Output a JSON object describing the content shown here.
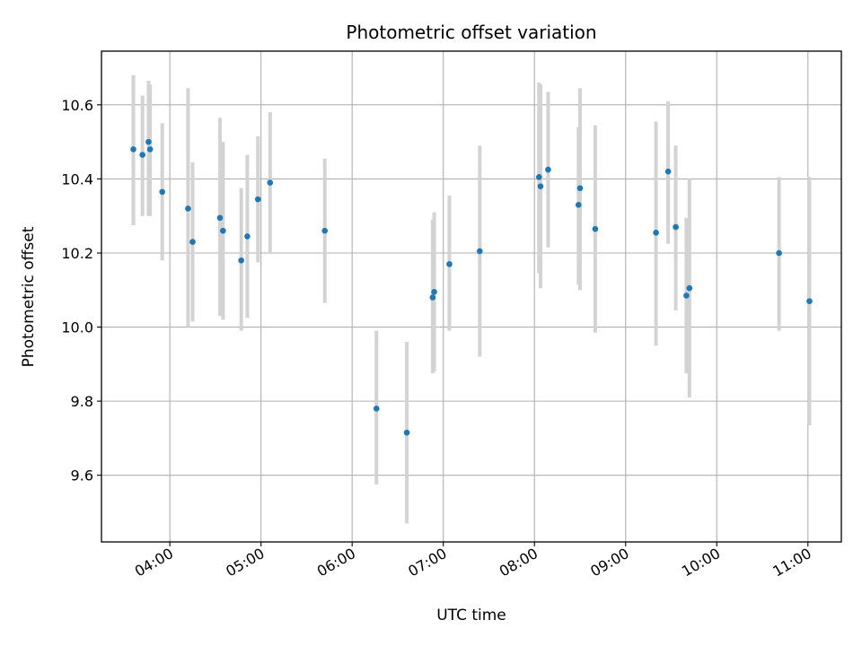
{
  "chart_data": {
    "type": "scatter",
    "title": "Photometric offset variation",
    "xlabel": "UTC time",
    "ylabel": "Photometric offset",
    "xlim": [
      "03:15",
      "11:22"
    ],
    "ylim": [
      9.42,
      10.745
    ],
    "grid": true,
    "x_ticks": [
      "04:00",
      "05:00",
      "06:00",
      "07:00",
      "08:00",
      "09:00",
      "10:00",
      "11:00"
    ],
    "y_ticks": [
      9.6,
      9.8,
      10.0,
      10.2,
      10.4,
      10.6
    ],
    "colors": {
      "point": "#1f77b4",
      "errorbar": "#d3d3d3",
      "grid": "#b0b0b0"
    },
    "series": [
      {
        "points": [
          {
            "x": "03:36",
            "y": 10.48,
            "lo": 10.275,
            "hi": 10.68
          },
          {
            "x": "03:42",
            "y": 10.465,
            "lo": 10.3,
            "hi": 10.625
          },
          {
            "x": "03:46",
            "y": 10.5,
            "lo": 10.3,
            "hi": 10.665
          },
          {
            "x": "03:47",
            "y": 10.48,
            "lo": 10.3,
            "hi": 10.655
          },
          {
            "x": "03:55",
            "y": 10.365,
            "lo": 10.18,
            "hi": 10.55
          },
          {
            "x": "04:12",
            "y": 10.32,
            "lo": 10.0,
            "hi": 10.645
          },
          {
            "x": "04:15",
            "y": 10.23,
            "lo": 10.015,
            "hi": 10.445
          },
          {
            "x": "04:33",
            "y": 10.295,
            "lo": 10.03,
            "hi": 10.565
          },
          {
            "x": "04:35",
            "y": 10.26,
            "lo": 10.02,
            "hi": 10.5
          },
          {
            "x": "04:47",
            "y": 10.18,
            "lo": 9.99,
            "hi": 10.375
          },
          {
            "x": "04:51",
            "y": 10.245,
            "lo": 10.025,
            "hi": 10.465
          },
          {
            "x": "04:58",
            "y": 10.345,
            "lo": 10.175,
            "hi": 10.515
          },
          {
            "x": "05:06",
            "y": 10.39,
            "lo": 10.2,
            "hi": 10.58
          },
          {
            "x": "05:42",
            "y": 10.26,
            "lo": 10.065,
            "hi": 10.455
          },
          {
            "x": "06:16",
            "y": 9.78,
            "lo": 9.575,
            "hi": 9.99
          },
          {
            "x": "06:36",
            "y": 9.715,
            "lo": 9.47,
            "hi": 9.96
          },
          {
            "x": "06:53",
            "y": 10.08,
            "lo": 9.875,
            "hi": 10.29
          },
          {
            "x": "06:54",
            "y": 10.095,
            "lo": 9.88,
            "hi": 10.31
          },
          {
            "x": "07:04",
            "y": 10.17,
            "lo": 9.99,
            "hi": 10.355
          },
          {
            "x": "07:24",
            "y": 10.205,
            "lo": 9.92,
            "hi": 10.49
          },
          {
            "x": "08:03",
            "y": 10.405,
            "lo": 10.145,
            "hi": 10.66
          },
          {
            "x": "08:04",
            "y": 10.38,
            "lo": 10.105,
            "hi": 10.655
          },
          {
            "x": "08:09",
            "y": 10.425,
            "lo": 10.215,
            "hi": 10.635
          },
          {
            "x": "08:29",
            "y": 10.33,
            "lo": 10.115,
            "hi": 10.54
          },
          {
            "x": "08:30",
            "y": 10.375,
            "lo": 10.1,
            "hi": 10.645
          },
          {
            "x": "08:40",
            "y": 10.265,
            "lo": 9.985,
            "hi": 10.545
          },
          {
            "x": "09:20",
            "y": 10.255,
            "lo": 9.95,
            "hi": 10.555
          },
          {
            "x": "09:28",
            "y": 10.42,
            "lo": 10.225,
            "hi": 10.61
          },
          {
            "x": "09:33",
            "y": 10.27,
            "lo": 10.045,
            "hi": 10.49
          },
          {
            "x": "09:40",
            "y": 10.085,
            "lo": 9.875,
            "hi": 10.295
          },
          {
            "x": "09:42",
            "y": 10.105,
            "lo": 9.81,
            "hi": 10.4
          },
          {
            "x": "10:41",
            "y": 10.2,
            "lo": 9.99,
            "hi": 10.405
          },
          {
            "x": "11:01",
            "y": 10.07,
            "lo": 9.735,
            "hi": 10.405
          }
        ]
      }
    ]
  }
}
